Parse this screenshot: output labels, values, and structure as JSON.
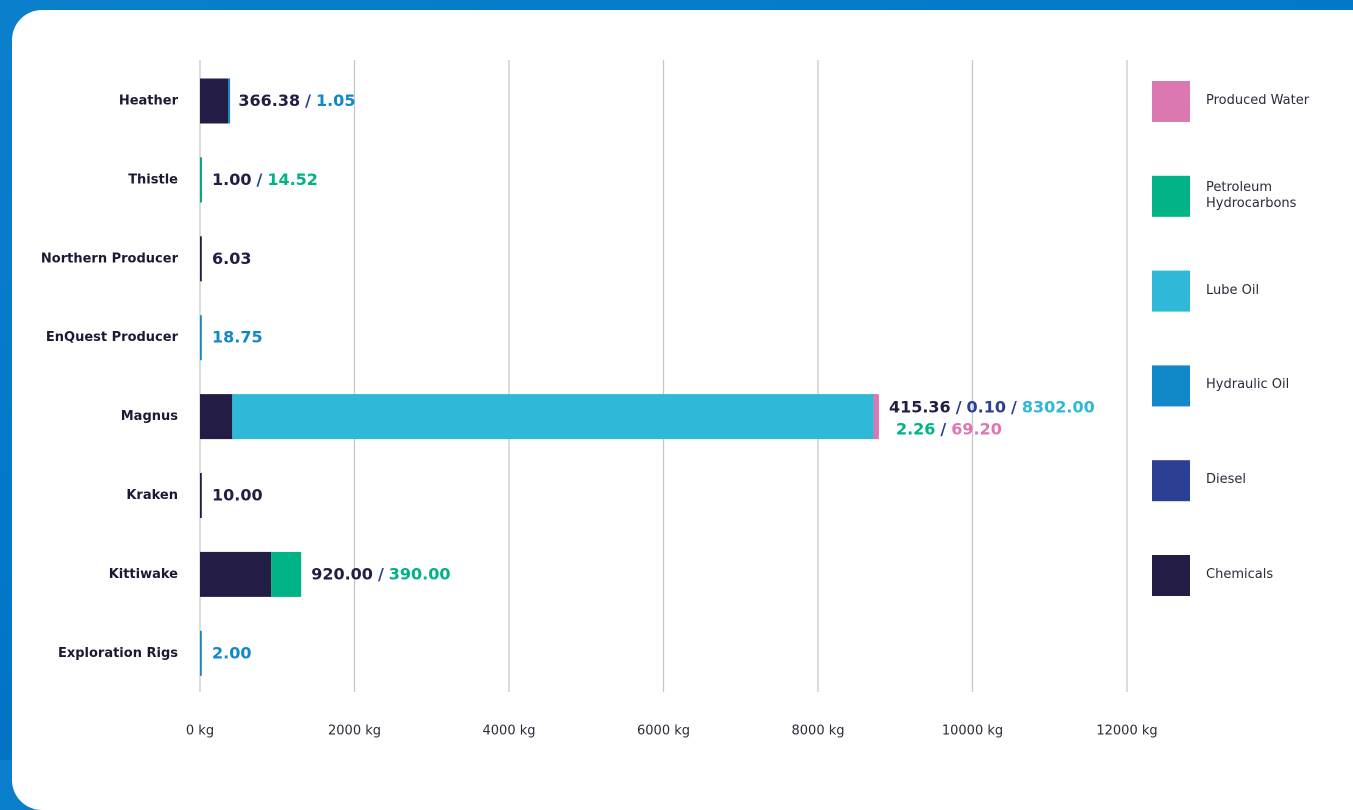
{
  "chart_data": {
    "type": "stacked-bar-horizontal",
    "categories": [
      "Heather",
      "Thistle",
      "Northern Producer",
      "EnQuest Producer",
      "Magnus",
      "Kraken",
      "Kittiwake",
      "Exploration Rigs"
    ],
    "series": [
      {
        "name": "Produced Water",
        "color": "#db78b2",
        "values": [
          null,
          null,
          null,
          null,
          69.2,
          null,
          null,
          null
        ],
        "value_labels": [
          null,
          null,
          null,
          null,
          "69.20",
          null,
          null,
          null
        ]
      },
      {
        "name": "Petroleum Hydrocarbons",
        "color": "#00b386",
        "values": [
          null,
          14.52,
          null,
          null,
          2.26,
          null,
          390,
          null
        ],
        "value_labels": [
          null,
          "14.52",
          null,
          null,
          "2.26",
          null,
          "390.00",
          null
        ]
      },
      {
        "name": "Lube Oil",
        "color": "#2fb8d8",
        "values": [
          null,
          null,
          null,
          null,
          8302,
          null,
          null,
          null
        ],
        "value_labels": [
          null,
          null,
          null,
          null,
          "8302.00",
          null,
          null,
          null
        ]
      },
      {
        "name": "Hydraulic Oil",
        "color": "#1288c8",
        "values": [
          1.05,
          null,
          null,
          18.75,
          null,
          null,
          null,
          2
        ],
        "value_labels": [
          "1.05",
          null,
          null,
          "18.75",
          null,
          null,
          null,
          "2.00"
        ]
      },
      {
        "name": "Diesel",
        "color": "#2b3f95",
        "values": [
          null,
          null,
          null,
          null,
          0.1,
          null,
          null,
          null
        ],
        "value_labels": [
          null,
          null,
          null,
          null,
          "0.10",
          null,
          null,
          null
        ]
      },
      {
        "name": "Chemicals",
        "color": "#231d45",
        "values": [
          366.38,
          1,
          6.03,
          null,
          415.36,
          10,
          920,
          null
        ],
        "value_labels": [
          "366.38",
          "1.00",
          "6.03",
          null,
          "415.36",
          "10.00",
          "920.00",
          null
        ]
      }
    ],
    "label_separator": "/",
    "xlim": [
      0,
      12000
    ],
    "xticks": [
      {
        "value": 0,
        "label": "0 kg"
      },
      {
        "value": 2000,
        "label": "2000 kg"
      },
      {
        "value": 4000,
        "label": "4000 kg"
      },
      {
        "value": 6000,
        "label": "6000 kg"
      },
      {
        "value": 8000,
        "label": "8000 kg"
      },
      {
        "value": 10000,
        "label": "10000 kg"
      },
      {
        "value": 12000,
        "label": "12000 kg"
      }
    ],
    "grid": true,
    "legend": "right"
  }
}
